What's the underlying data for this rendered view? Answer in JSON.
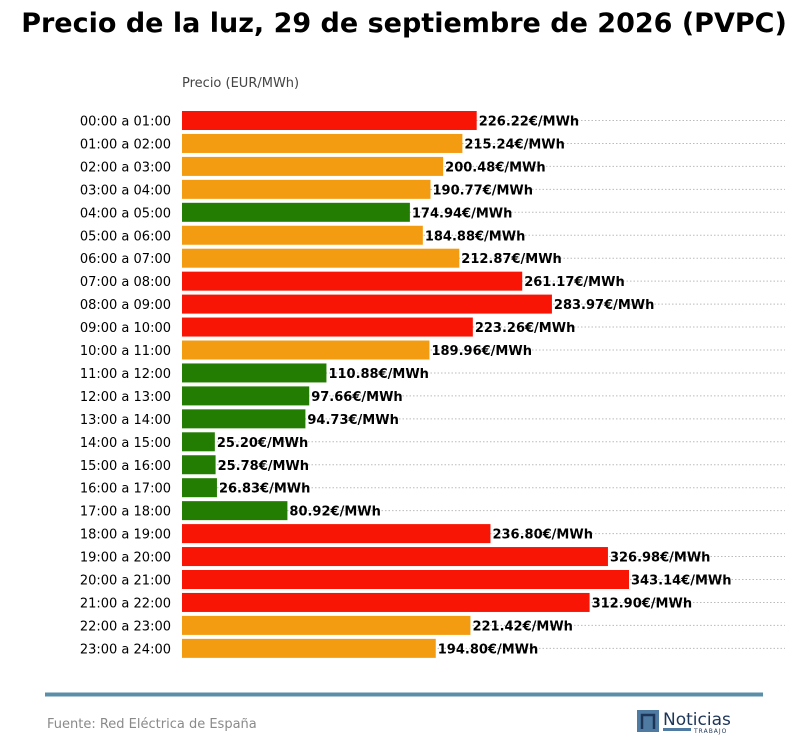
{
  "chart_data": {
    "type": "bar",
    "orientation": "horizontal",
    "title": "Precio de la luz, 29 de septiembre de 2026 (PVPC)",
    "xlabel": "Precio (EUR/MWh)",
    "unit_suffix": "€/MWh",
    "xlim": [
      0,
      350
    ],
    "grid": "dotted horizontal",
    "categories": [
      "00:00 a 01:00",
      "01:00 a 02:00",
      "02:00 a 03:00",
      "03:00 a 04:00",
      "04:00 a 05:00",
      "05:00 a 06:00",
      "06:00 a 07:00",
      "07:00 a 08:00",
      "08:00 a 09:00",
      "09:00 a 10:00",
      "10:00 a 11:00",
      "11:00 a 12:00",
      "12:00 a 13:00",
      "13:00 a 14:00",
      "14:00 a 15:00",
      "15:00 a 16:00",
      "16:00 a 17:00",
      "17:00 a 18:00",
      "18:00 a 19:00",
      "19:00 a 20:00",
      "20:00 a 21:00",
      "21:00 a 22:00",
      "22:00 a 23:00",
      "23:00 a 24:00"
    ],
    "values": [
      226.22,
      215.24,
      200.48,
      190.77,
      174.94,
      184.88,
      212.87,
      261.17,
      283.97,
      223.26,
      189.96,
      110.88,
      97.66,
      94.73,
      25.2,
      25.78,
      26.83,
      80.92,
      236.8,
      326.98,
      343.14,
      312.9,
      221.42,
      194.8
    ],
    "value_labels": [
      "226.22€/MWh",
      "215.24€/MWh",
      "200.48€/MWh",
      "190.77€/MWh",
      "174.94€/MWh",
      "184.88€/MWh",
      "212.87€/MWh",
      "261.17€/MWh",
      "283.97€/MWh",
      "223.26€/MWh",
      "189.96€/MWh",
      "110.88€/MWh",
      "97.66€/MWh",
      "94.73€/MWh",
      "25.20€/MWh",
      "25.78€/MWh",
      "26.83€/MWh",
      "80.92€/MWh",
      "236.80€/MWh",
      "326.98€/MWh",
      "343.14€/MWh",
      "312.90€/MWh",
      "221.42€/MWh",
      "194.80€/MWh"
    ],
    "bar_colors": [
      "red",
      "orange",
      "orange",
      "orange",
      "green",
      "orange",
      "orange",
      "red",
      "red",
      "red",
      "orange",
      "green",
      "green",
      "green",
      "green",
      "green",
      "green",
      "green",
      "red",
      "red",
      "red",
      "red",
      "orange",
      "orange"
    ],
    "palette": {
      "red": "#f91505",
      "orange": "#f39c12",
      "green": "#237d02"
    }
  },
  "footer": {
    "source": "Fuente: Red Eléctrica de España",
    "rule_color": "#5b8fa8"
  },
  "logo": {
    "name": "Noticias",
    "sub": "TRABAJO",
    "color": "#1d3557",
    "box_color": "#4f7ba3"
  }
}
